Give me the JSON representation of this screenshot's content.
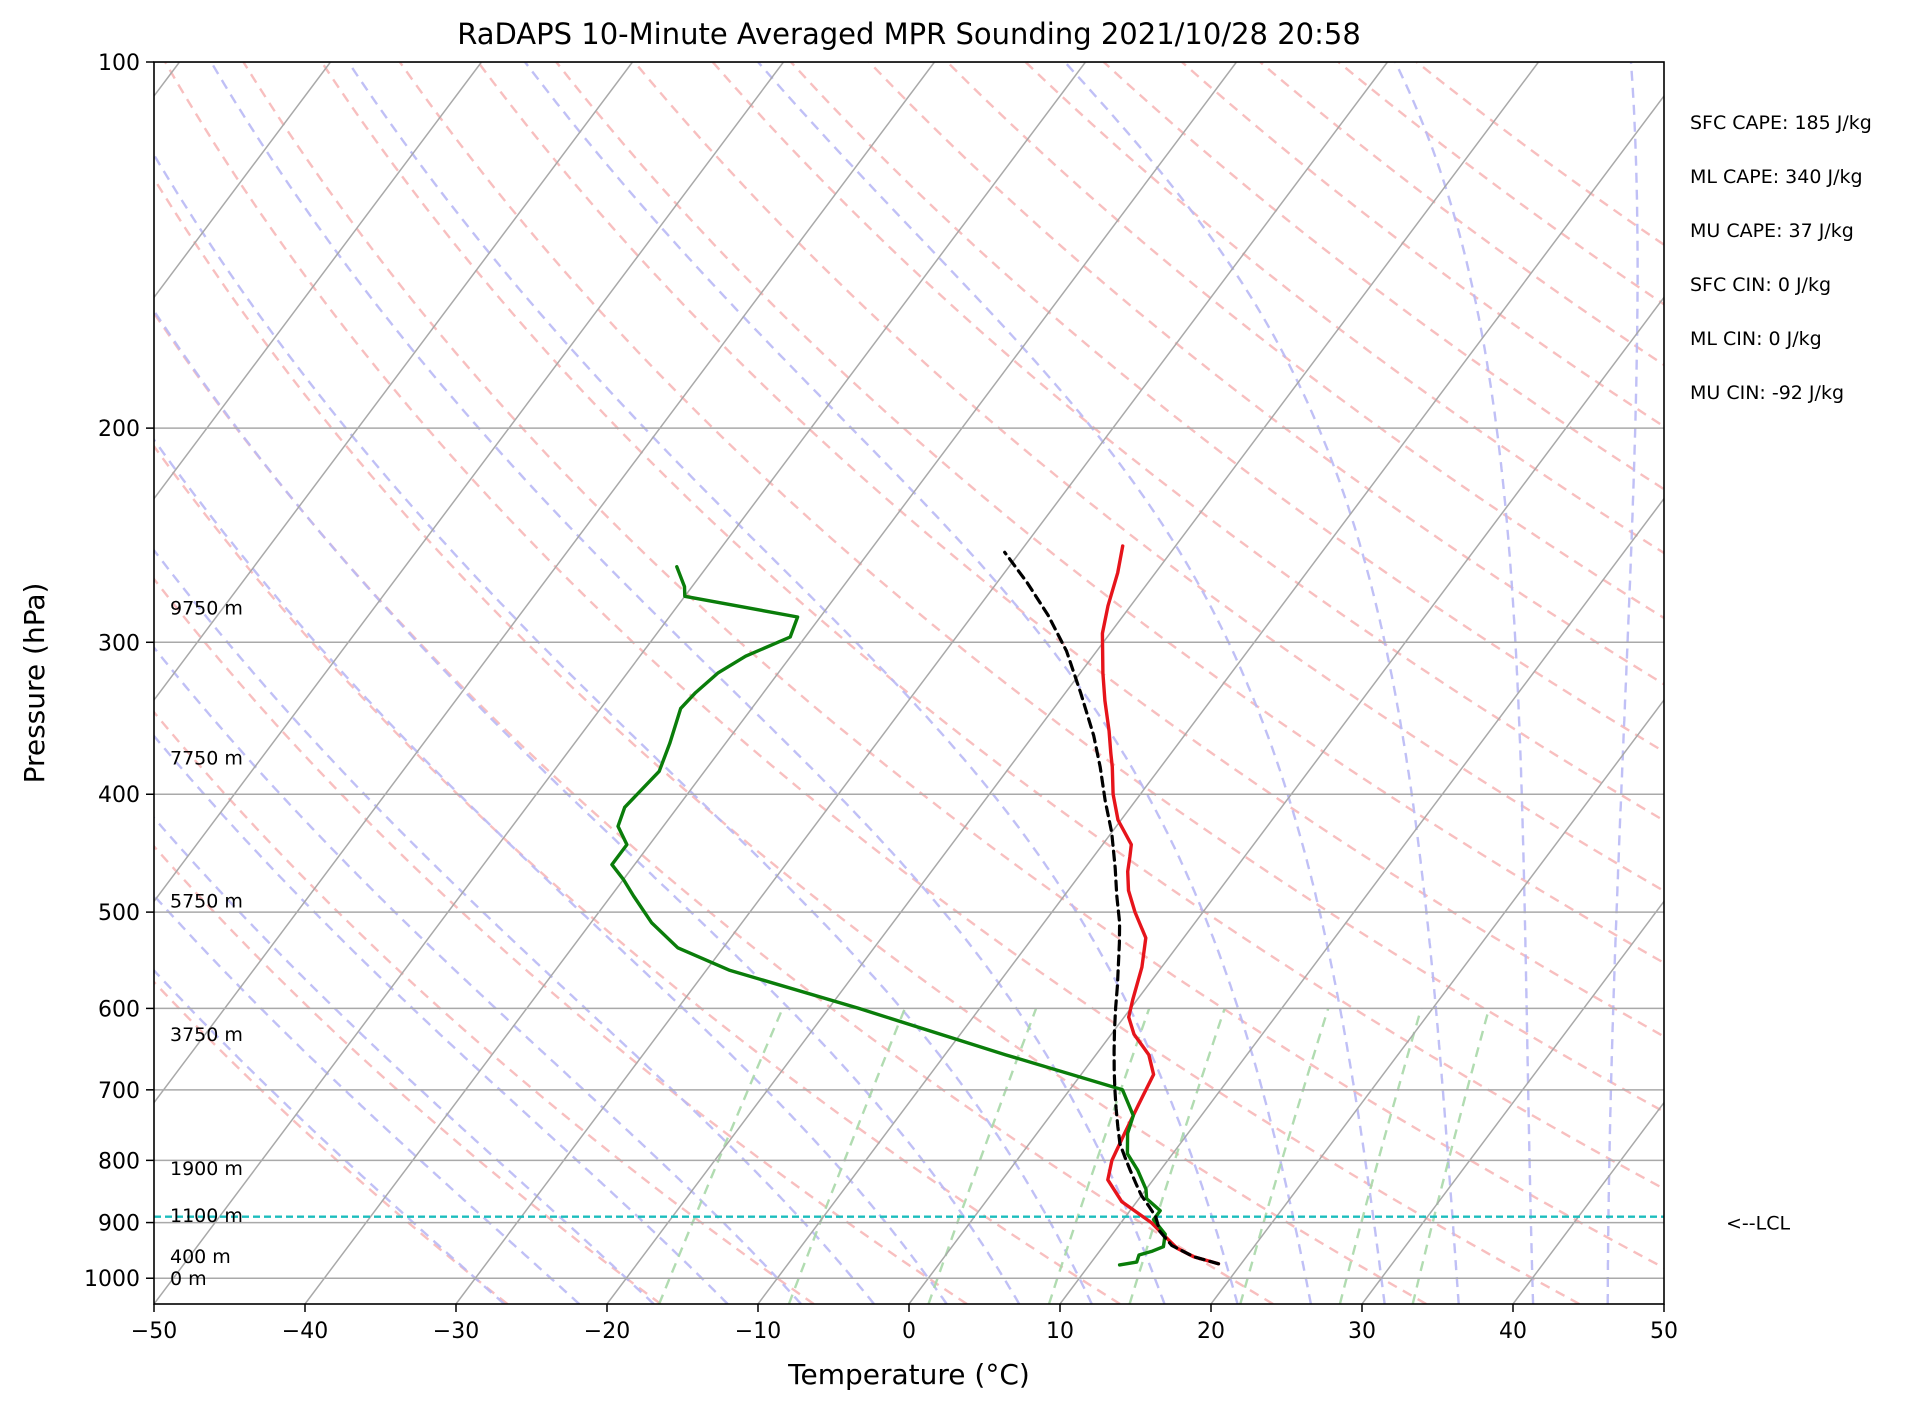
{
  "chart_data": {
    "type": "line",
    "title": "RaDAPS 10-Minute Averaged MPR Sounding 2021/10/28 20:58",
    "xlabel": "Temperature (°C)",
    "ylabel": "Pressure (hPa)",
    "xlim": [
      -50,
      50
    ],
    "ylim": [
      1050,
      100
    ],
    "y_scale": "log",
    "x_ticks": [
      "−50",
      "−40",
      "−30",
      "−20",
      "−10",
      "0",
      "10",
      "20",
      "30",
      "40",
      "50"
    ],
    "y_ticks": [
      "100",
      "200",
      "300",
      "400",
      "500",
      "600",
      "700",
      "800",
      "900",
      "1000"
    ],
    "grid": true,
    "series": [
      {
        "color": "#e6141b",
        "points": [
          [
            18.5,
            973
          ],
          [
            16.5,
            960
          ],
          [
            15,
            945
          ],
          [
            14,
            930
          ],
          [
            12,
            900
          ],
          [
            9,
            865
          ],
          [
            7,
            830
          ],
          [
            6.3,
            800
          ],
          [
            5.8,
            760
          ],
          [
            5.3,
            720
          ],
          [
            4.8,
            680
          ],
          [
            3.5,
            655
          ],
          [
            1.5,
            630
          ],
          [
            0.3,
            610
          ],
          [
            -0.3,
            590
          ],
          [
            -1.3,
            555
          ],
          [
            -2.5,
            525
          ],
          [
            -4.5,
            500
          ],
          [
            -6,
            480
          ],
          [
            -7,
            463
          ],
          [
            -7.6,
            450
          ],
          [
            -8.1,
            440
          ],
          [
            -10.2,
            420
          ],
          [
            -11.8,
            400
          ],
          [
            -13.2,
            380
          ],
          [
            -14,
            370
          ],
          [
            -15.2,
            355
          ],
          [
            -17,
            335
          ],
          [
            -18.5,
            318
          ],
          [
            -20.5,
            295
          ],
          [
            -21.5,
            280
          ],
          [
            -22.5,
            263
          ],
          [
            -23.5,
            250
          ]
        ]
      },
      {
        "color": "#0a7d0a",
        "points": [
          [
            12,
            975
          ],
          [
            13,
            970
          ],
          [
            12.8,
            957
          ],
          [
            13.5,
            950
          ],
          [
            14,
            942
          ],
          [
            13.5,
            920
          ],
          [
            12,
            895
          ],
          [
            12,
            880
          ],
          [
            10.5,
            860
          ],
          [
            10,
            845
          ],
          [
            8.5,
            815
          ],
          [
            7,
            790
          ],
          [
            6,
            760
          ],
          [
            5.5,
            735
          ],
          [
            3.5,
            700
          ],
          [
            -6,
            655
          ],
          [
            -18,
            600
          ],
          [
            -28.5,
            558
          ],
          [
            -33,
            535
          ],
          [
            -36,
            510
          ],
          [
            -38.5,
            485
          ],
          [
            -40,
            470
          ],
          [
            -41.5,
            457
          ],
          [
            -41.5,
            440
          ],
          [
            -43,
            425
          ],
          [
            -43.5,
            410
          ],
          [
            -43,
            383
          ],
          [
            -43.7,
            363
          ],
          [
            -44.7,
            340
          ],
          [
            -44.5,
            330
          ],
          [
            -44,
            318
          ],
          [
            -43,
            308
          ],
          [
            -41,
            297
          ],
          [
            -41.5,
            286
          ],
          [
            -50,
            275
          ],
          [
            -50.5,
            270
          ],
          [
            -52,
            260
          ]
        ]
      },
      {
        "color": "#000000",
        "dashed": true,
        "points": [
          [
            18.5,
            973
          ],
          [
            16.5,
            960
          ],
          [
            14.5,
            940
          ],
          [
            13,
            915
          ],
          [
            12,
            890
          ],
          [
            11,
            872
          ],
          [
            10,
            855
          ],
          [
            9,
            835
          ],
          [
            8,
            815
          ],
          [
            7,
            795
          ],
          [
            6,
            775
          ],
          [
            5,
            750
          ],
          [
            4,
            725
          ],
          [
            3,
            700
          ],
          [
            2,
            675
          ],
          [
            1,
            650
          ],
          [
            0,
            625
          ],
          [
            -1,
            600
          ],
          [
            -2,
            575
          ],
          [
            -3,
            552
          ],
          [
            -4,
            530
          ],
          [
            -5,
            510
          ],
          [
            -6.5,
            485
          ],
          [
            -8,
            460
          ],
          [
            -10,
            430
          ],
          [
            -12,
            405
          ],
          [
            -14,
            380
          ],
          [
            -16,
            358
          ],
          [
            -19,
            330
          ],
          [
            -22,
            305
          ],
          [
            -25,
            285
          ],
          [
            -28,
            268
          ],
          [
            -31,
            253
          ]
        ]
      }
    ],
    "lcl_hpa": 890,
    "lcl_label": "<--LCL",
    "height_labels": [
      {
        "text": "9750 m",
        "p": 281
      },
      {
        "text": "7750 m",
        "p": 373
      },
      {
        "text": "5750 m",
        "p": 489
      },
      {
        "text": "3750 m",
        "p": 630
      },
      {
        "text": "1900 m",
        "p": 812
      },
      {
        "text": "1100 m",
        "p": 887
      },
      {
        "text": "400 m",
        "p": 959
      },
      {
        "text": "0 m",
        "p": 1000
      }
    ],
    "stats": [
      "SFC CAPE: 185 J/kg",
      "ML CAPE: 340 J/kg",
      "MU CAPE: 37 J/kg",
      "SFC CIN: 0 J/kg",
      "ML CIN: 0 J/kg",
      "MU CIN: -92 J/kg"
    ],
    "isotherm_color": "#a9a9a9",
    "dry_adiabat_color": "#f7b4b4",
    "moist_adiabat_color": "#b9b9f5",
    "mixing_ratio_color": "#a8d8a8",
    "lcl_color": "#1cbdbd"
  }
}
